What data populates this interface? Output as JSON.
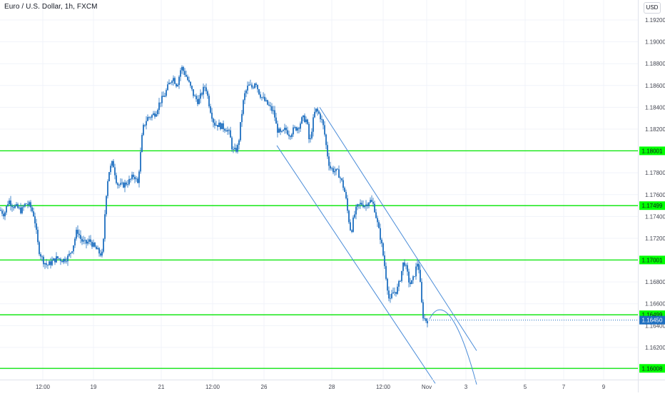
{
  "header": {
    "title": "Euro / U.S. Dollar, 1h, FXCM",
    "currency": "USD"
  },
  "colors": {
    "candle": "#1e6fc0",
    "level_line": "#00e600",
    "level_label_bg": "#00ff00",
    "channel": "#4a8cd8",
    "last_price_bg": "#1e6fc0",
    "grid": "#f0f3fa",
    "axis_text": "#434651"
  },
  "chart_data": {
    "type": "candlestick",
    "symbol": "Euro / U.S. Dollar",
    "interval": "1h",
    "source": "FXCM",
    "y_ticks": [
      "1.19200",
      "1.19000",
      "1.18800",
      "1.18600",
      "1.18400",
      "1.18200",
      "1.18000",
      "1.17800",
      "1.17600",
      "1.17400",
      "1.17200",
      "1.17000",
      "1.16800",
      "1.16600",
      "1.16400",
      "1.16200",
      "1.16000"
    ],
    "ylim": [
      1.1595,
      1.1933
    ],
    "x_ticks": [
      "12:00",
      "19",
      "21",
      "12:00",
      "26",
      "28",
      "12:00",
      "Nov",
      "3",
      "5",
      "7",
      "9"
    ],
    "horizontal_levels": [
      {
        "label": "1.18001",
        "value": 1.18001
      },
      {
        "label": "1.17499",
        "value": 1.17499
      },
      {
        "label": "1.17001",
        "value": 1.17001
      },
      {
        "label": "1.16499",
        "value": 1.16499
      },
      {
        "label": "1.16008",
        "value": 1.16008
      }
    ],
    "last_price": {
      "label": "1.16450",
      "value": 1.1645
    },
    "price_path": [
      [
        0,
        1.1746
      ],
      [
        6,
        1.1742
      ],
      [
        12,
        1.1755
      ],
      [
        18,
        1.175
      ],
      [
        24,
        1.1748
      ],
      [
        30,
        1.1745
      ],
      [
        36,
        1.1752
      ],
      [
        42,
        1.175
      ],
      [
        48,
        1.174
      ],
      [
        54,
        1.171
      ],
      [
        60,
        1.17
      ],
      [
        66,
        1.1695
      ],
      [
        72,
        1.1698
      ],
      [
        80,
        1.1702
      ],
      [
        88,
        1.17
      ],
      [
        96,
        1.1703
      ],
      [
        102,
        1.1712
      ],
      [
        108,
        1.1728
      ],
      [
        114,
        1.1718
      ],
      [
        120,
        1.1715
      ],
      [
        126,
        1.1718
      ],
      [
        132,
        1.1712
      ],
      [
        140,
        1.1706
      ],
      [
        144,
        1.1705
      ],
      [
        148,
        1.1755
      ],
      [
        152,
        1.178
      ],
      [
        158,
        1.179
      ],
      [
        164,
        1.177
      ],
      [
        170,
        1.1768
      ],
      [
        176,
        1.177
      ],
      [
        182,
        1.1773
      ],
      [
        188,
        1.1778
      ],
      [
        193,
        1.177
      ],
      [
        196,
        1.179
      ],
      [
        200,
        1.182
      ],
      [
        206,
        1.183
      ],
      [
        212,
        1.1832
      ],
      [
        218,
        1.1835
      ],
      [
        224,
        1.1845
      ],
      [
        230,
        1.185
      ],
      [
        236,
        1.186
      ],
      [
        242,
        1.1868
      ],
      [
        248,
        1.186
      ],
      [
        254,
        1.1877
      ],
      [
        260,
        1.187
      ],
      [
        266,
        1.186
      ],
      [
        272,
        1.185
      ],
      [
        278,
        1.1845
      ],
      [
        284,
        1.1855
      ],
      [
        288,
        1.186
      ],
      [
        294,
        1.184
      ],
      [
        300,
        1.1825
      ],
      [
        306,
        1.1824
      ],
      [
        312,
        1.1822
      ],
      [
        318,
        1.182
      ],
      [
        322,
        1.1815
      ],
      [
        326,
        1.18
      ],
      [
        330,
        1.18
      ],
      [
        334,
        1.1805
      ],
      [
        338,
        1.183
      ],
      [
        342,
        1.185
      ],
      [
        348,
        1.186
      ],
      [
        354,
        1.1858
      ],
      [
        358,
        1.1865
      ],
      [
        362,
        1.1855
      ],
      [
        366,
        1.185
      ],
      [
        372,
        1.1845
      ],
      [
        378,
        1.184
      ],
      [
        384,
        1.1835
      ],
      [
        388,
        1.182
      ],
      [
        394,
        1.1815
      ],
      [
        400,
        1.182
      ],
      [
        406,
        1.1815
      ],
      [
        412,
        1.182
      ],
      [
        418,
        1.1822
      ],
      [
        424,
        1.183
      ],
      [
        430,
        1.1828
      ],
      [
        434,
        1.1805
      ],
      [
        438,
        1.1825
      ],
      [
        442,
        1.1838
      ],
      [
        446,
        1.1835
      ],
      [
        450,
        1.183
      ],
      [
        454,
        1.182
      ],
      [
        458,
        1.18
      ],
      [
        462,
        1.1785
      ],
      [
        468,
        1.1782
      ],
      [
        474,
        1.178
      ],
      [
        480,
        1.177
      ],
      [
        484,
        1.176
      ],
      [
        488,
        1.174
      ],
      [
        492,
        1.1725
      ],
      [
        496,
        1.174
      ],
      [
        500,
        1.1748
      ],
      [
        506,
        1.1752
      ],
      [
        512,
        1.175
      ],
      [
        518,
        1.1755
      ],
      [
        524,
        1.175
      ],
      [
        530,
        1.173
      ],
      [
        534,
        1.1718
      ],
      [
        538,
        1.17
      ],
      [
        542,
        1.168
      ],
      [
        546,
        1.166
      ],
      [
        550,
        1.167
      ],
      [
        556,
        1.1672
      ],
      [
        560,
        1.168
      ],
      [
        566,
        1.17
      ],
      [
        570,
        1.169
      ],
      [
        574,
        1.1678
      ],
      [
        578,
        1.168
      ],
      [
        582,
        1.169
      ],
      [
        586,
        1.17
      ],
      [
        590,
        1.167
      ],
      [
        592,
        1.165
      ],
      [
        596,
        1.1645
      ],
      [
        600,
        1.1645
      ]
    ]
  }
}
